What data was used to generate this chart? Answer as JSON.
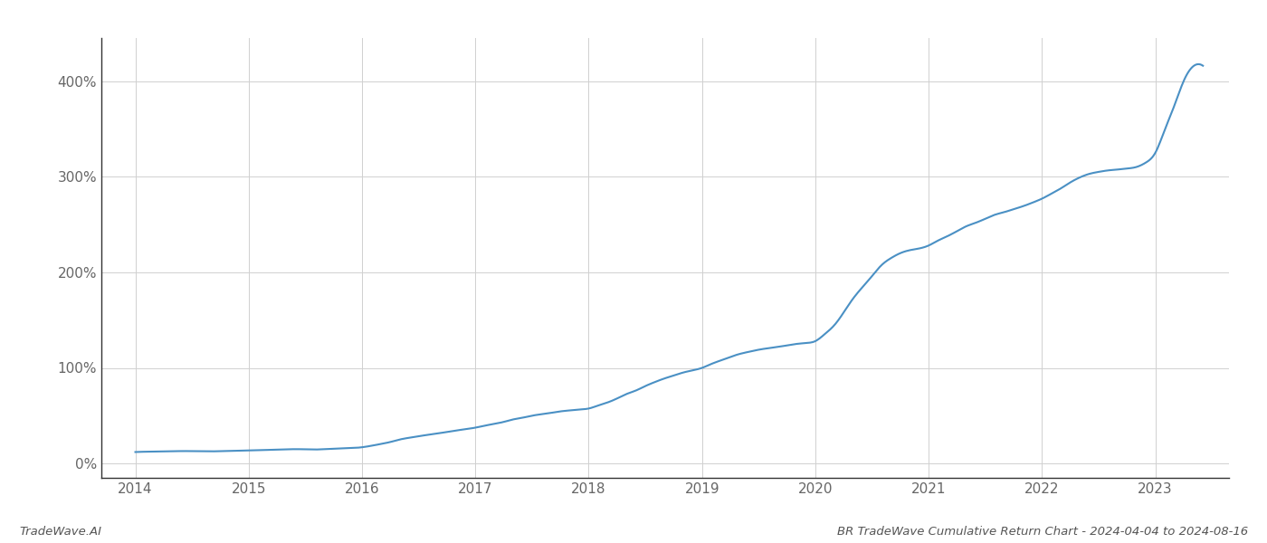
{
  "title": "BR TradeWave Cumulative Return Chart - 2024-04-04 to 2024-08-16",
  "watermark": "TradeWave.AI",
  "line_color": "#4a90c4",
  "background_color": "#ffffff",
  "grid_color": "#d0d0d0",
  "x_years": [
    2014,
    2015,
    2016,
    2017,
    2018,
    2019,
    2020,
    2021,
    2022,
    2023
  ],
  "y_ticks": [
    0,
    100,
    200,
    300,
    400
  ],
  "xlim": [
    2013.7,
    2023.65
  ],
  "ylim": [
    -15,
    445
  ],
  "data_x": [
    2014.0,
    2014.08,
    2014.17,
    2014.25,
    2014.33,
    2014.42,
    2014.5,
    2014.58,
    2014.67,
    2014.75,
    2014.83,
    2014.92,
    2015.0,
    2015.08,
    2015.17,
    2015.25,
    2015.33,
    2015.42,
    2015.5,
    2015.58,
    2015.67,
    2015.75,
    2015.83,
    2015.92,
    2016.0,
    2016.08,
    2016.17,
    2016.25,
    2016.33,
    2016.42,
    2016.5,
    2016.58,
    2016.67,
    2016.75,
    2016.83,
    2016.92,
    2017.0,
    2017.08,
    2017.17,
    2017.25,
    2017.33,
    2017.42,
    2017.5,
    2017.58,
    2017.67,
    2017.75,
    2017.83,
    2017.92,
    2018.0,
    2018.08,
    2018.17,
    2018.25,
    2018.33,
    2018.42,
    2018.5,
    2018.58,
    2018.67,
    2018.75,
    2018.83,
    2018.92,
    2019.0,
    2019.08,
    2019.17,
    2019.25,
    2019.33,
    2019.42,
    2019.5,
    2019.58,
    2019.67,
    2019.75,
    2019.83,
    2019.92,
    2020.0,
    2020.08,
    2020.17,
    2020.25,
    2020.33,
    2020.42,
    2020.5,
    2020.58,
    2020.67,
    2020.75,
    2020.83,
    2020.92,
    2021.0,
    2021.08,
    2021.17,
    2021.25,
    2021.33,
    2021.42,
    2021.5,
    2021.58,
    2021.67,
    2021.75,
    2021.83,
    2021.92,
    2022.0,
    2022.08,
    2022.17,
    2022.25,
    2022.33,
    2022.42,
    2022.5,
    2022.58,
    2022.67,
    2022.75,
    2022.83,
    2022.92,
    2023.0,
    2023.08,
    2023.17,
    2023.25,
    2023.33,
    2023.42
  ],
  "data_y": [
    12.0,
    12.3,
    12.5,
    12.7,
    12.8,
    13.0,
    12.9,
    12.8,
    12.7,
    12.9,
    13.1,
    13.4,
    13.7,
    14.0,
    14.2,
    14.5,
    14.8,
    15.0,
    14.8,
    14.6,
    15.0,
    15.4,
    15.8,
    16.2,
    17.0,
    18.5,
    20.5,
    22.5,
    25.0,
    27.0,
    28.5,
    30.0,
    31.5,
    33.0,
    34.5,
    36.0,
    37.5,
    39.5,
    41.5,
    43.5,
    46.0,
    48.0,
    50.0,
    51.5,
    53.0,
    54.5,
    55.5,
    56.5,
    57.5,
    60.5,
    64.0,
    68.0,
    72.5,
    76.5,
    81.0,
    85.0,
    89.0,
    92.0,
    95.0,
    97.5,
    100.0,
    104.0,
    108.0,
    111.5,
    114.5,
    117.0,
    119.0,
    120.5,
    122.0,
    123.5,
    125.0,
    126.0,
    128.0,
    135.0,
    145.0,
    158.0,
    172.0,
    185.0,
    196.0,
    207.0,
    215.0,
    220.0,
    223.0,
    225.0,
    228.0,
    233.0,
    238.0,
    243.0,
    248.0,
    252.0,
    256.0,
    260.0,
    263.0,
    266.0,
    269.0,
    273.0,
    277.0,
    282.0,
    288.0,
    294.0,
    299.0,
    303.0,
    305.0,
    306.5,
    307.5,
    308.5,
    310.0,
    315.0,
    325.0,
    348.0,
    375.0,
    400.0,
    415.0,
    416.0
  ]
}
